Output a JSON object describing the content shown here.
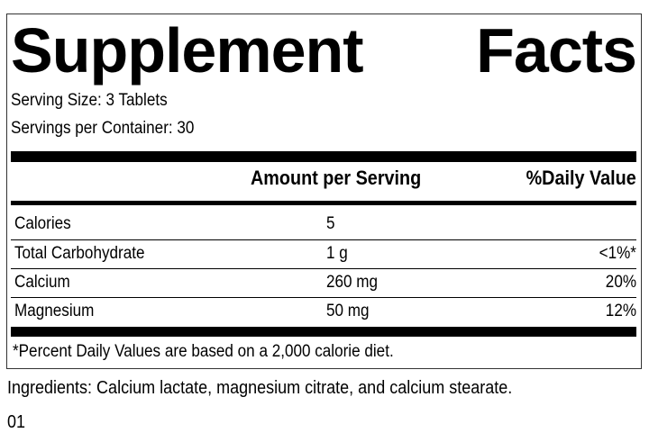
{
  "label": {
    "title_word1": "Supplement",
    "title_word2": "Facts",
    "serving_size": "Serving Size: 3 Tablets",
    "servings_per_container": "Servings per Container: 30",
    "header_amount": "Amount per Serving",
    "header_dv": "%Daily Value",
    "rows": [
      {
        "name": "Calories",
        "amount": "5",
        "dv": ""
      },
      {
        "name": "Total Carbohydrate",
        "amount": "1 g",
        "dv": "<1%*"
      },
      {
        "name": "Calcium",
        "amount": "260 mg",
        "dv": "20%"
      },
      {
        "name": "Magnesium",
        "amount": "50 mg",
        "dv": "12%"
      }
    ],
    "footnote": "*Percent Daily Values are based on a 2,000 calorie diet."
  },
  "ingredients": "Ingredients: Calcium lactate, magnesium citrate, and calcium stearate.",
  "code": "01"
}
